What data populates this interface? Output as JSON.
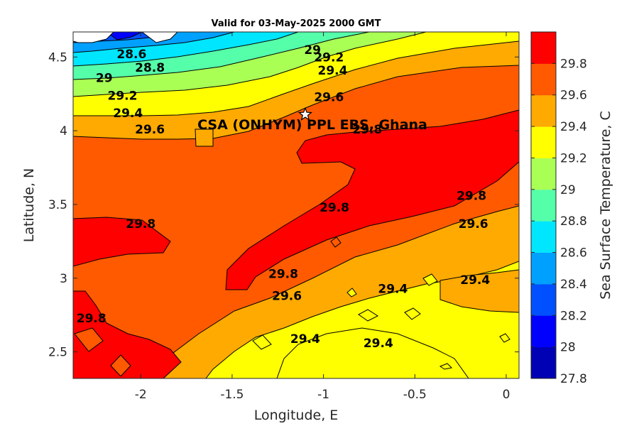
{
  "chart_data": {
    "type": "contour",
    "title": "Valid for 03-May-2025 2000 GMT",
    "xlabel": "Longitude, E",
    "ylabel": "Latitude, N",
    "xlim": [
      -2.37,
      0.07
    ],
    "ylim": [
      2.32,
      4.67
    ],
    "xticks": [
      -2,
      -1.5,
      -1,
      -0.5,
      0
    ],
    "xtick_labels": [
      "-2",
      "-1.5",
      "-1",
      "-0.5",
      "0"
    ],
    "yticks": [
      2.5,
      3,
      3.5,
      4,
      4.5
    ],
    "ytick_labels": [
      "2.5",
      "3",
      "3.5",
      "4",
      "4.5"
    ],
    "colorbar": {
      "label": "Sea Surface Temperature, C",
      "ticks": [
        27.8,
        28,
        28.2,
        28.4,
        28.6,
        28.8,
        29,
        29.2,
        29.4,
        29.6,
        29.8
      ],
      "tick_labels": [
        "27.8",
        "28",
        "28.2",
        "28.4",
        "28.6",
        "28.8",
        "29",
        "29.2",
        "29.4",
        "29.6",
        "29.8"
      ],
      "levels": [
        {
          "min": 27.8,
          "max": 28.0,
          "color": "#0000b4"
        },
        {
          "min": 28.0,
          "max": 28.2,
          "color": "#0000ff"
        },
        {
          "min": 28.2,
          "max": 28.4,
          "color": "#0050ff"
        },
        {
          "min": 28.4,
          "max": 28.6,
          "color": "#00a0ff"
        },
        {
          "min": 28.6,
          "max": 28.8,
          "color": "#00e6ff"
        },
        {
          "min": 28.8,
          "max": 29.0,
          "color": "#55ffaa"
        },
        {
          "min": 29.0,
          "max": 29.2,
          "color": "#aaff55"
        },
        {
          "min": 29.2,
          "max": 29.4,
          "color": "#ffff00"
        },
        {
          "min": 29.4,
          "max": 29.6,
          "color": "#ffaa00"
        },
        {
          "min": 29.6,
          "max": 29.8,
          "color": "#ff5a00"
        },
        {
          "min": 29.8,
          "max": 30.0,
          "color": "#ff0000"
        }
      ]
    },
    "site": {
      "name": "CSA (ONHYM) PPL EBS, Ghana",
      "lon": -1.1,
      "lat": 4.11,
      "marker": "star"
    },
    "contour_labels": [
      {
        "text": "28.6",
        "lon": -2.05,
        "lat": 4.52
      },
      {
        "text": "28.8",
        "lon": -1.95,
        "lat": 4.43
      },
      {
        "text": "29",
        "lon": -2.2,
        "lat": 4.36
      },
      {
        "text": "29.2",
        "lon": -2.1,
        "lat": 4.24
      },
      {
        "text": "29.4",
        "lon": -2.07,
        "lat": 4.12
      },
      {
        "text": "29.6",
        "lon": -1.95,
        "lat": 4.01
      },
      {
        "text": "29",
        "lon": -1.06,
        "lat": 4.55
      },
      {
        "text": "29.2",
        "lon": -0.97,
        "lat": 4.5
      },
      {
        "text": "29.4",
        "lon": -0.95,
        "lat": 4.41
      },
      {
        "text": "29.6",
        "lon": -0.97,
        "lat": 4.23
      },
      {
        "text": "29.8",
        "lon": -0.76,
        "lat": 4.01
      },
      {
        "text": "29.8",
        "lon": -2.0,
        "lat": 3.37
      },
      {
        "text": "29.8",
        "lon": -0.94,
        "lat": 3.48
      },
      {
        "text": "29.8",
        "lon": -0.19,
        "lat": 3.56
      },
      {
        "text": "29.6",
        "lon": -0.18,
        "lat": 3.37
      },
      {
        "text": "29.8",
        "lon": -1.22,
        "lat": 3.03
      },
      {
        "text": "29.6",
        "lon": -1.2,
        "lat": 2.88
      },
      {
        "text": "29.4",
        "lon": -0.62,
        "lat": 2.93
      },
      {
        "text": "29.4",
        "lon": -0.17,
        "lat": 2.99
      },
      {
        "text": "29.4",
        "lon": -1.1,
        "lat": 2.59
      },
      {
        "text": "29.4",
        "lon": -0.7,
        "lat": 2.56
      },
      {
        "text": "29.8",
        "lon": -2.27,
        "lat": 2.73
      }
    ]
  }
}
